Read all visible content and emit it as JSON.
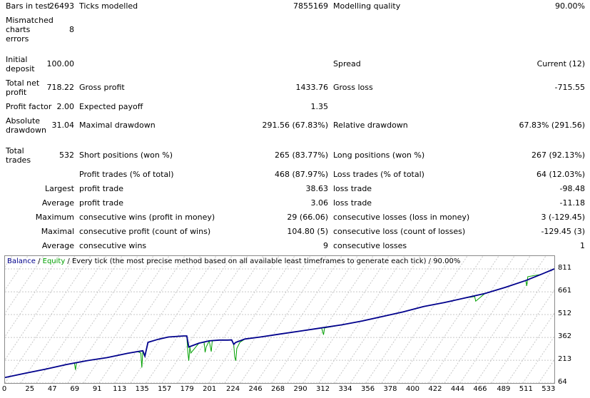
{
  "report": {
    "bars_label": "Bars in test",
    "bars_value": "26493",
    "ticks_label": "Ticks modelled",
    "ticks_value": "7855169",
    "quality_label": "Modelling quality",
    "quality_value": "90.00%",
    "mismatch_label": "Mismatched charts errors",
    "mismatch_value": "8",
    "deposit_label": "Initial deposit",
    "deposit_value": "100.00",
    "spread_label": "Spread",
    "spread_value": "Current (12)",
    "net_label": "Total net profit",
    "net_value": "718.22",
    "gross_profit_label": "Gross profit",
    "gross_profit_value": "1433.76",
    "gross_loss_label": "Gross loss",
    "gross_loss_value": "-715.55",
    "pf_label": "Profit factor",
    "pf_value": "2.00",
    "payoff_label": "Expected payoff",
    "payoff_value": "1.35",
    "abs_dd_label": "Absolute drawdown",
    "abs_dd_value": "31.04",
    "max_dd_label": "Maximal drawdown",
    "max_dd_value": "291.56 (67.83%)",
    "rel_dd_label": "Relative drawdown",
    "rel_dd_value": "67.83% (291.56)",
    "trades_label": "Total trades",
    "trades_value": "532",
    "short_label": "Short positions (won %)",
    "short_value": "265 (83.77%)",
    "long_label": "Long positions (won %)",
    "long_value": "267 (92.13%)",
    "profit_trades_label": "Profit trades (% of total)",
    "profit_trades_value": "468 (87.97%)",
    "loss_trades_label": "Loss trades (% of total)",
    "loss_trades_value": "64 (12.03%)",
    "largest_label": "Largest",
    "largest_profit_label": "profit trade",
    "largest_profit_value": "38.63",
    "largest_loss_label": "loss trade",
    "largest_loss_value": "-98.48",
    "average_label": "Average",
    "average_profit_label": "profit trade",
    "average_profit_value": "3.06",
    "average_loss_label": "loss trade",
    "average_loss_value": "-11.18",
    "maximum_label": "Maximum",
    "max_wins_label": "consecutive wins (profit in money)",
    "max_wins_value": "29 (66.06)",
    "max_losses_label": "consecutive losses (loss in money)",
    "max_losses_value": "3 (-129.45)",
    "maximal_label": "Maximal",
    "maximal_profit_label": "consecutive profit (count of wins)",
    "maximal_profit_value": "104.80 (5)",
    "maximal_loss_label": "consecutive loss (count of losses)",
    "maximal_loss_value": "-129.45 (3)",
    "avg2_label": "Average",
    "avg_wins_label": "consecutive wins",
    "avg_wins_value": "9",
    "avg_losses_label": "consecutive losses",
    "avg_losses_value": "1"
  },
  "chart_title": {
    "balance": "Balance",
    "sep1": " / ",
    "equity": "Equity",
    "rest": " / Every tick (the most precise method based on all available least timeframes to generate each tick) / 90.00%"
  },
  "colors": {
    "balance": "#00008c",
    "equity": "#00a000",
    "grid": "#c8c8c8"
  },
  "chart_data": {
    "type": "line",
    "ylim": [
      64,
      811
    ],
    "xlim": [
      0,
      538
    ],
    "y_ticks": [
      811,
      661,
      512,
      362,
      213,
      64
    ],
    "x_ticks": [
      0,
      25,
      47,
      69,
      91,
      113,
      135,
      157,
      179,
      201,
      224,
      246,
      268,
      290,
      312,
      334,
      356,
      378,
      400,
      422,
      444,
      466,
      489,
      511,
      533
    ],
    "series": [
      {
        "name": "Balance",
        "x": [
          0,
          20,
          40,
          60,
          80,
          100,
          120,
          130,
          135,
          137,
          140,
          150,
          160,
          170,
          175,
          178,
          180,
          190,
          200,
          210,
          218,
          222,
          224,
          226,
          235,
          250,
          270,
          290,
          310,
          330,
          350,
          370,
          390,
          410,
          430,
          450,
          470,
          490,
          510,
          525,
          538
        ],
        "y": [
          100,
          128,
          155,
          185,
          210,
          230,
          258,
          270,
          275,
          240,
          330,
          350,
          365,
          370,
          372,
          372,
          300,
          325,
          340,
          345,
          345,
          346,
          318,
          330,
          352,
          365,
          385,
          405,
          425,
          445,
          470,
          500,
          530,
          565,
          590,
          620,
          650,
          690,
          735,
          775,
          811
        ]
      },
      {
        "name": "Equity",
        "x": [
          0,
          20,
          40,
          60,
          68,
          69,
          70,
          80,
          100,
          120,
          130,
          133,
          134,
          135,
          136,
          137,
          140,
          150,
          160,
          170,
          175,
          178,
          179,
          180,
          181,
          182,
          190,
          195,
          196,
          197,
          200,
          202,
          203,
          210,
          218,
          222,
          224,
          225,
          226,
          227,
          230,
          235,
          250,
          270,
          290,
          310,
          312,
          313,
          330,
          350,
          370,
          390,
          410,
          430,
          450,
          460,
          461,
          470,
          490,
          510,
          511,
          512,
          525,
          538
        ],
        "y": [
          100,
          128,
          155,
          185,
          195,
          150,
          195,
          210,
          230,
          258,
          270,
          260,
          165,
          275,
          250,
          240,
          330,
          350,
          365,
          370,
          372,
          372,
          270,
          210,
          300,
          260,
          325,
          330,
          265,
          300,
          340,
          270,
          340,
          345,
          345,
          346,
          318,
          235,
          210,
          290,
          330,
          352,
          365,
          385,
          405,
          425,
          380,
          425,
          445,
          470,
          500,
          530,
          565,
          590,
          620,
          630,
          600,
          650,
          690,
          735,
          700,
          760,
          775,
          811
        ]
      }
    ]
  }
}
